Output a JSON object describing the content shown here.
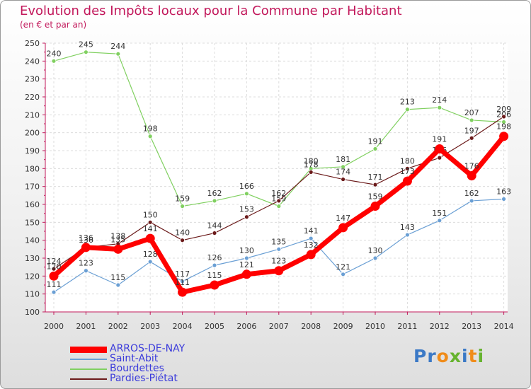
{
  "title": "Evolution des Impôts locaux pour la Commune par Habitant",
  "subtitle": "(en € et par an)",
  "logo": "Proxiti",
  "chart_data": {
    "type": "line",
    "title": "Evolution des Impôts locaux pour la Commune par Habitant",
    "ylabel": "(en € et par an)",
    "x": [
      2000,
      2001,
      2002,
      2003,
      2004,
      2005,
      2006,
      2007,
      2008,
      2009,
      2010,
      2011,
      2012,
      2013,
      2014
    ],
    "ylim": [
      100,
      250
    ],
    "yticks": [
      100,
      110,
      120,
      130,
      140,
      150,
      160,
      170,
      180,
      190,
      200,
      210,
      220,
      230,
      240,
      250
    ],
    "grid": true,
    "legend_position": "bottom-left",
    "series": [
      {
        "name": "ARROS-DE-NAY",
        "color": "#ff0000",
        "values": [
          120,
          136,
          135,
          141,
          111,
          115,
          121,
          123,
          132,
          147,
          159,
          173,
          191,
          176,
          198
        ]
      },
      {
        "name": "Saint-Abit",
        "color": "#6a9fd4",
        "values": [
          111,
          123,
          115,
          128,
          117,
          126,
          130,
          135,
          141,
          121,
          130,
          143,
          151,
          162,
          163
        ]
      },
      {
        "name": "Bourdettes",
        "color": "#80d060",
        "values": [
          240,
          245,
          244,
          198,
          159,
          162,
          166,
          159,
          180,
          181,
          191,
          213,
          214,
          207,
          206
        ]
      },
      {
        "name": "Pardies-Piétat",
        "color": "#6b1a1a",
        "values": [
          124,
          136,
          138,
          150,
          140,
          144,
          153,
          162,
          178,
          174,
          171,
          180,
          186,
          197,
          209
        ]
      }
    ]
  }
}
